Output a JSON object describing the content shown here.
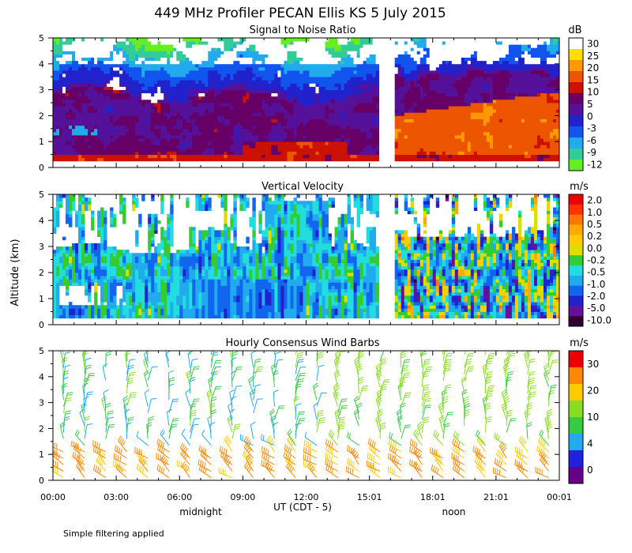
{
  "title": "449 MHz Profiler PECAN Ellis KS   5 July 2015",
  "shared": {
    "ylabel": "Altitude (km)",
    "xlabel": "UT  (CDT - 5)",
    "xticks": [
      "00:00",
      "03:00",
      "06:00",
      "09:00",
      "12:00",
      "15:01",
      "18:01",
      "21:01",
      "00:01"
    ],
    "xtick_hours": [
      0,
      3,
      6,
      9,
      12,
      15,
      18,
      21,
      24
    ],
    "local_labels": [
      {
        "text": "midnight",
        "hour": 7
      },
      {
        "text": "noon",
        "hour": 19
      }
    ],
    "footnote": "Simple filtering applied",
    "yticks": [
      "0",
      "1",
      "2",
      "3",
      "4",
      "5"
    ]
  },
  "colors": {
    "snr": [
      "#66ee22",
      "#33cc99",
      "#22aaee",
      "#1155ee",
      "#2222cc",
      "#551199",
      "#660066",
      "#cc1100",
      "#ee5500",
      "#ff9900",
      "#ffdd00",
      "#ffffff"
    ],
    "vel": [
      "#330033",
      "#661199",
      "#2222cc",
      "#1166ee",
      "#22aaee",
      "#22dddd",
      "#33cc33",
      "#dddd00",
      "#ffcc00",
      "#ffaa00",
      "#ff7700",
      "#ff3300",
      "#ee0000"
    ],
    "wind": [
      "#660088",
      "#2222dd",
      "#22aaee",
      "#33cc44",
      "#88dd22",
      "#ffcc00",
      "#ff8800",
      "#ee0000"
    ]
  },
  "chart_data": [
    {
      "type": "heatmap",
      "title": "Signal to Noise Ratio",
      "units": "dB",
      "xlabel": "UT  (CDT - 5)",
      "ylabel": "Altitude (km)",
      "xlim": [
        0,
        24
      ],
      "ylim": [
        0,
        5
      ],
      "data_gap_hours": [
        15.5,
        16.2
      ],
      "colorbar_ticks": [
        "30",
        "25",
        "20",
        "15",
        "10",
        "5",
        "0",
        "-3",
        "-6",
        "-9",
        "-12"
      ],
      "colorbar_values": [
        30,
        25,
        20,
        15,
        10,
        5,
        0,
        -3,
        -6,
        -9,
        -12
      ]
    },
    {
      "type": "heatmap",
      "title": "Vertical Velocity",
      "units": "m/s",
      "xlabel": "UT  (CDT - 5)",
      "ylabel": "Altitude (km)",
      "xlim": [
        0,
        24
      ],
      "ylim": [
        0,
        5
      ],
      "data_gap_hours": [
        15.5,
        16.2
      ],
      "colorbar_ticks": [
        "2.0",
        "1.0",
        "0.5",
        "0.2",
        "0.0",
        "-0.2",
        "-0.5",
        "-1.0",
        "-2.0",
        "-5.0",
        "-10.0"
      ],
      "colorbar_values": [
        2.0,
        1.0,
        0.5,
        0.2,
        0.0,
        -0.2,
        -0.5,
        -1.0,
        -2.0,
        -5.0,
        -10.0
      ]
    },
    {
      "type": "scatter",
      "title": "Hourly Consensus Wind Barbs",
      "units": "m/s",
      "xlabel": "UT  (CDT - 5)",
      "ylabel": "Altitude (km)",
      "xlim": [
        0,
        24
      ],
      "ylim": [
        0,
        5
      ],
      "colorbar_ticks": [
        "30",
        "20",
        "10",
        "4",
        "0"
      ],
      "colorbar_values": [
        30,
        20,
        10,
        4,
        0
      ],
      "barb_hours": [
        0.5,
        1.5,
        2.5,
        3.5,
        4.5,
        5.5,
        6.5,
        7.5,
        8.5,
        9.5,
        10.5,
        11.5,
        12.5,
        13.5,
        14.5,
        15.5,
        16.5,
        17.5,
        18.5,
        19.5,
        20.5,
        21.5,
        22.5,
        23.5
      ]
    }
  ]
}
